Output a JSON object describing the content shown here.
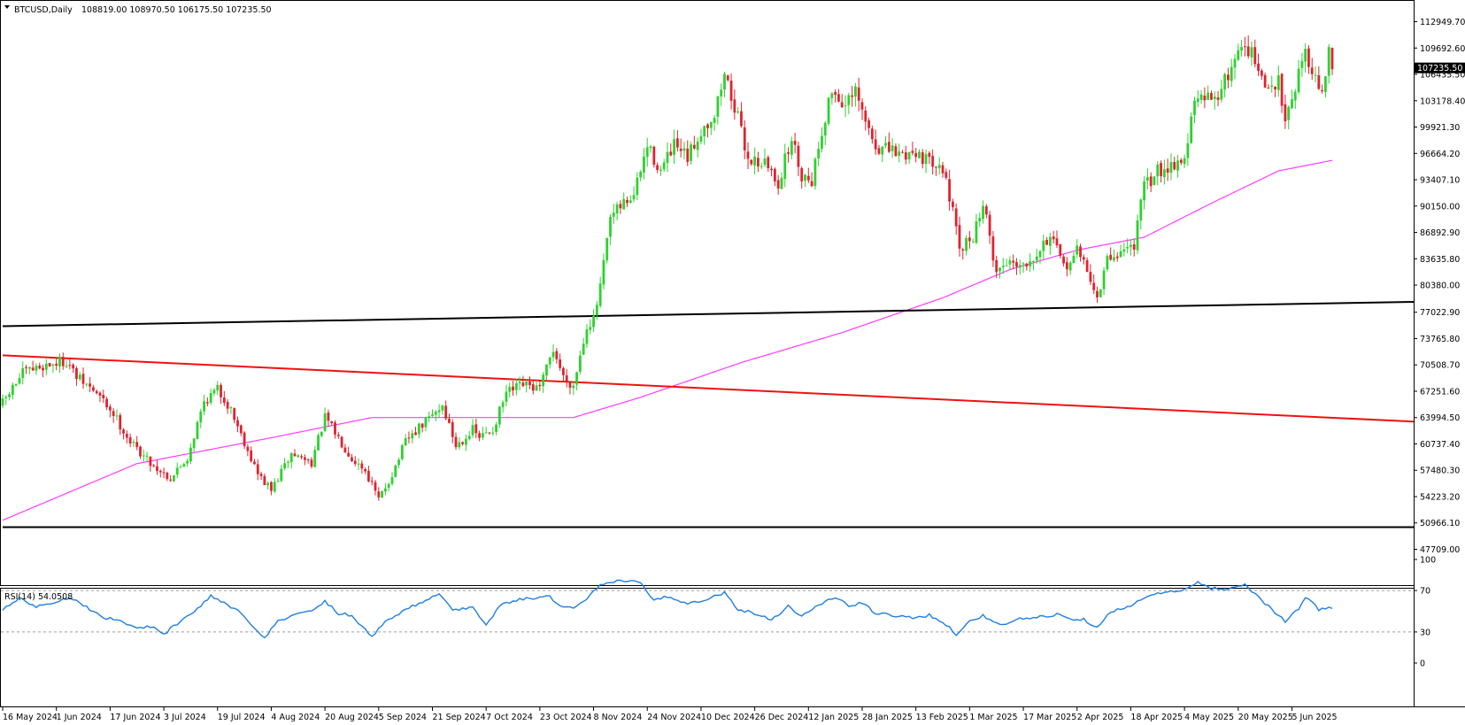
{
  "header": {
    "symbol": "BTCUSD,Daily",
    "ohlc": "108819.00 108970.50 106175.50 107235.50"
  },
  "colors": {
    "bull": "#2fd12f",
    "bear": "#e0232f",
    "ma": "#ff3cff",
    "support_line": "#000000",
    "trend_line": "#ee1111",
    "rsi": "#1e7fe0",
    "price_tag_bg": "#000000"
  },
  "chart_data": [
    {
      "type": "candlestick",
      "title": "BTCUSD,Daily",
      "current_price": 107235.5,
      "current_price_label": "107235.50",
      "ylim": [
        47709,
        114200
      ],
      "y_ticks": [
        "112949.70",
        "109692.60",
        "106435.50",
        "103178.40",
        "99921.30",
        "96664.20",
        "93407.10",
        "90150.00",
        "86892.90",
        "83635.80",
        "80380.00",
        "77022.90",
        "73765.80",
        "70508.70",
        "67251.60",
        "63994.50",
        "60737.40",
        "57480.30",
        "54223.20",
        "50966.10",
        "47709.00"
      ],
      "y_tick_values": [
        112949.7,
        109692.6,
        106435.5,
        103178.4,
        99921.3,
        96664.2,
        93407.1,
        90150.0,
        86892.9,
        83635.8,
        80380.0,
        77022.9,
        73765.8,
        70508.7,
        67251.6,
        63994.5,
        60737.4,
        57480.3,
        54223.2,
        50966.1,
        47709.0
      ],
      "x_ticks": [
        "16 May 2024",
        "1 Jun 2024",
        "17 Jun 2024",
        "3 Jul 2024",
        "19 Jul 2024",
        "4 Aug 2024",
        "20 Aug 2024",
        "5 Sep 2024",
        "21 Sep 2024",
        "7 Oct 2024",
        "23 Oct 2024",
        "8 Nov 2024",
        "24 Nov 2024",
        "10 Dec 2024",
        "26 Dec 2024",
        "12 Jan 2025",
        "28 Jan 2025",
        "13 Feb 2025",
        "1 Mar 2025",
        "17 Mar 2025",
        "2 Apr 2025",
        "18 Apr 2025",
        "4 May 2025",
        "20 May 2025",
        "5 Jun 2025"
      ],
      "close_anchors": [
        {
          "day": 0,
          "value": 65800
        },
        {
          "day": 6,
          "value": 69500
        },
        {
          "day": 13,
          "value": 70500
        },
        {
          "day": 19,
          "value": 71000
        },
        {
          "day": 22,
          "value": 69000
        },
        {
          "day": 28,
          "value": 67000
        },
        {
          "day": 33,
          "value": 64500
        },
        {
          "day": 38,
          "value": 61000
        },
        {
          "day": 45,
          "value": 58000
        },
        {
          "day": 50,
          "value": 56500
        },
        {
          "day": 55,
          "value": 59000
        },
        {
          "day": 60,
          "value": 66000
        },
        {
          "day": 64,
          "value": 67500
        },
        {
          "day": 68,
          "value": 65000
        },
        {
          "day": 72,
          "value": 61000
        },
        {
          "day": 76,
          "value": 57000
        },
        {
          "day": 80,
          "value": 55000
        },
        {
          "day": 86,
          "value": 59500
        },
        {
          "day": 92,
          "value": 58500
        },
        {
          "day": 96,
          "value": 64000
        },
        {
          "day": 100,
          "value": 61500
        },
        {
          "day": 104,
          "value": 59000
        },
        {
          "day": 108,
          "value": 57500
        },
        {
          "day": 112,
          "value": 53800
        },
        {
          "day": 116,
          "value": 57000
        },
        {
          "day": 120,
          "value": 61000
        },
        {
          "day": 126,
          "value": 63500
        },
        {
          "day": 131,
          "value": 65500
        },
        {
          "day": 135,
          "value": 60500
        },
        {
          "day": 140,
          "value": 62500
        },
        {
          "day": 142,
          "value": 61500
        },
        {
          "day": 146,
          "value": 62500
        },
        {
          "day": 150,
          "value": 67000
        },
        {
          "day": 155,
          "value": 68000
        },
        {
          "day": 160,
          "value": 67500
        },
        {
          "day": 164,
          "value": 72500
        },
        {
          "day": 167,
          "value": 69000
        },
        {
          "day": 170,
          "value": 68000
        },
        {
          "day": 174,
          "value": 75500
        },
        {
          "day": 176,
          "value": 76000
        },
        {
          "day": 178,
          "value": 80000
        },
        {
          "day": 181,
          "value": 88500
        },
        {
          "day": 185,
          "value": 90500
        },
        {
          "day": 188,
          "value": 91500
        },
        {
          "day": 192,
          "value": 97500
        },
        {
          "day": 196,
          "value": 94500
        },
        {
          "day": 200,
          "value": 97500
        },
        {
          "day": 204,
          "value": 96000
        },
        {
          "day": 208,
          "value": 99500
        },
        {
          "day": 212,
          "value": 101500
        },
        {
          "day": 215,
          "value": 106500
        },
        {
          "day": 218,
          "value": 102500
        },
        {
          "day": 222,
          "value": 96000
        },
        {
          "day": 227,
          "value": 95500
        },
        {
          "day": 231,
          "value": 93000
        },
        {
          "day": 235,
          "value": 98500
        },
        {
          "day": 238,
          "value": 94000
        },
        {
          "day": 241,
          "value": 93500
        },
        {
          "day": 244,
          "value": 99500
        },
        {
          "day": 247,
          "value": 104500
        },
        {
          "day": 251,
          "value": 102500
        },
        {
          "day": 254,
          "value": 104000
        },
        {
          "day": 257,
          "value": 100500
        },
        {
          "day": 260,
          "value": 97500
        },
        {
          "day": 264,
          "value": 97000
        },
        {
          "day": 268,
          "value": 96500
        },
        {
          "day": 272,
          "value": 97000
        },
        {
          "day": 276,
          "value": 95500
        },
        {
          "day": 279,
          "value": 96000
        },
        {
          "day": 282,
          "value": 91500
        },
        {
          "day": 285,
          "value": 84500
        },
        {
          "day": 289,
          "value": 86500
        },
        {
          "day": 292,
          "value": 90500
        },
        {
          "day": 296,
          "value": 82000
        },
        {
          "day": 300,
          "value": 83500
        },
        {
          "day": 304,
          "value": 83000
        },
        {
          "day": 308,
          "value": 84500
        },
        {
          "day": 312,
          "value": 86500
        },
        {
          "day": 316,
          "value": 82500
        },
        {
          "day": 320,
          "value": 84500
        },
        {
          "day": 323,
          "value": 82500
        },
        {
          "day": 326,
          "value": 78500
        },
        {
          "day": 329,
          "value": 83500
        },
        {
          "day": 333,
          "value": 84500
        },
        {
          "day": 337,
          "value": 85500
        },
        {
          "day": 340,
          "value": 92500
        },
        {
          "day": 344,
          "value": 94500
        },
        {
          "day": 349,
          "value": 95500
        },
        {
          "day": 352,
          "value": 96000
        },
        {
          "day": 355,
          "value": 103000
        },
        {
          "day": 359,
          "value": 103500
        },
        {
          "day": 363,
          "value": 104500
        },
        {
          "day": 367,
          "value": 108500
        },
        {
          "day": 370,
          "value": 110500
        },
        {
          "day": 373,
          "value": 108000
        },
        {
          "day": 376,
          "value": 104500
        },
        {
          "day": 380,
          "value": 105500
        },
        {
          "day": 382,
          "value": 101500
        },
        {
          "day": 385,
          "value": 105000
        },
        {
          "day": 388,
          "value": 109800
        },
        {
          "day": 391,
          "value": 105500
        },
        {
          "day": 393,
          "value": 104500
        },
        {
          "day": 395,
          "value": 108800
        },
        {
          "day": 396,
          "value": 107235.5
        }
      ],
      "ma_anchors": [
        {
          "day": 0,
          "value": 51300
        },
        {
          "day": 40,
          "value": 58300
        },
        {
          "day": 80,
          "value": 61500
        },
        {
          "day": 110,
          "value": 64000
        },
        {
          "day": 150,
          "value": 64000
        },
        {
          "day": 170,
          "value": 64000
        },
        {
          "day": 190,
          "value": 66500
        },
        {
          "day": 220,
          "value": 70800
        },
        {
          "day": 250,
          "value": 74500
        },
        {
          "day": 280,
          "value": 78800
        },
        {
          "day": 300,
          "value": 82300
        },
        {
          "day": 320,
          "value": 84700
        },
        {
          "day": 340,
          "value": 86300
        },
        {
          "day": 360,
          "value": 90500
        },
        {
          "day": 380,
          "value": 94500
        },
        {
          "day": 396,
          "value": 95800
        }
      ],
      "lines": [
        {
          "name": "support",
          "start": {
            "day": 0,
            "value": 75300
          },
          "end": {
            "day": 396,
            "value": 78300
          }
        },
        {
          "name": "trend",
          "start": {
            "day": 0,
            "value": 71700
          },
          "end": {
            "day": 396,
            "value": 63500
          }
        },
        {
          "name": "base",
          "start": {
            "day": 0,
            "value": 50450
          },
          "end": {
            "day": 396,
            "value": 50450
          }
        }
      ],
      "total_days": 397,
      "grid": false
    },
    {
      "type": "line",
      "title": "RSI(14) 54.0508",
      "ylim": [
        0,
        100
      ],
      "y_ticks": [
        "100",
        "70",
        "30",
        "0"
      ],
      "y_tick_values": [
        100,
        70,
        30,
        0
      ],
      "levels": [
        70,
        30
      ],
      "current_value": 54.0508,
      "rsi_anchors": [
        {
          "day": 0,
          "value": 52
        },
        {
          "day": 5,
          "value": 62
        },
        {
          "day": 10,
          "value": 55
        },
        {
          "day": 15,
          "value": 58
        },
        {
          "day": 20,
          "value": 64
        },
        {
          "day": 25,
          "value": 54
        },
        {
          "day": 30,
          "value": 44
        },
        {
          "day": 35,
          "value": 41
        },
        {
          "day": 40,
          "value": 33
        },
        {
          "day": 45,
          "value": 36
        },
        {
          "day": 48,
          "value": 28
        },
        {
          "day": 52,
          "value": 38
        },
        {
          "day": 58,
          "value": 52
        },
        {
          "day": 62,
          "value": 65
        },
        {
          "day": 66,
          "value": 58
        },
        {
          "day": 70,
          "value": 50
        },
        {
          "day": 74,
          "value": 38
        },
        {
          "day": 78,
          "value": 25
        },
        {
          "day": 82,
          "value": 40
        },
        {
          "day": 86,
          "value": 46
        },
        {
          "day": 92,
          "value": 50
        },
        {
          "day": 96,
          "value": 60
        },
        {
          "day": 100,
          "value": 48
        },
        {
          "day": 104,
          "value": 46
        },
        {
          "day": 110,
          "value": 26
        },
        {
          "day": 114,
          "value": 40
        },
        {
          "day": 118,
          "value": 48
        },
        {
          "day": 124,
          "value": 58
        },
        {
          "day": 130,
          "value": 67
        },
        {
          "day": 134,
          "value": 50
        },
        {
          "day": 140,
          "value": 55
        },
        {
          "day": 144,
          "value": 36
        },
        {
          "day": 148,
          "value": 55
        },
        {
          "day": 152,
          "value": 60
        },
        {
          "day": 158,
          "value": 63
        },
        {
          "day": 162,
          "value": 66
        },
        {
          "day": 166,
          "value": 56
        },
        {
          "day": 170,
          "value": 52
        },
        {
          "day": 174,
          "value": 62
        },
        {
          "day": 178,
          "value": 75
        },
        {
          "day": 182,
          "value": 78
        },
        {
          "day": 186,
          "value": 80
        },
        {
          "day": 190,
          "value": 77
        },
        {
          "day": 194,
          "value": 60
        },
        {
          "day": 198,
          "value": 64
        },
        {
          "day": 204,
          "value": 58
        },
        {
          "day": 210,
          "value": 62
        },
        {
          "day": 215,
          "value": 68
        },
        {
          "day": 219,
          "value": 52
        },
        {
          "day": 224,
          "value": 48
        },
        {
          "day": 229,
          "value": 42
        },
        {
          "day": 234,
          "value": 55
        },
        {
          "day": 238,
          "value": 45
        },
        {
          "day": 242,
          "value": 54
        },
        {
          "day": 248,
          "value": 64
        },
        {
          "day": 252,
          "value": 55
        },
        {
          "day": 256,
          "value": 58
        },
        {
          "day": 260,
          "value": 48
        },
        {
          "day": 265,
          "value": 46
        },
        {
          "day": 270,
          "value": 44
        },
        {
          "day": 276,
          "value": 46
        },
        {
          "day": 280,
          "value": 40
        },
        {
          "day": 284,
          "value": 28
        },
        {
          "day": 288,
          "value": 40
        },
        {
          "day": 292,
          "value": 46
        },
        {
          "day": 297,
          "value": 36
        },
        {
          "day": 302,
          "value": 42
        },
        {
          "day": 308,
          "value": 44
        },
        {
          "day": 314,
          "value": 47
        },
        {
          "day": 318,
          "value": 43
        },
        {
          "day": 322,
          "value": 42
        },
        {
          "day": 326,
          "value": 35
        },
        {
          "day": 330,
          "value": 50
        },
        {
          "day": 336,
          "value": 54
        },
        {
          "day": 340,
          "value": 64
        },
        {
          "day": 346,
          "value": 68
        },
        {
          "day": 352,
          "value": 70
        },
        {
          "day": 356,
          "value": 78
        },
        {
          "day": 360,
          "value": 72
        },
        {
          "day": 366,
          "value": 72
        },
        {
          "day": 370,
          "value": 76
        },
        {
          "day": 374,
          "value": 64
        },
        {
          "day": 378,
          "value": 52
        },
        {
          "day": 382,
          "value": 40
        },
        {
          "day": 386,
          "value": 52
        },
        {
          "day": 388,
          "value": 64
        },
        {
          "day": 392,
          "value": 52
        },
        {
          "day": 396,
          "value": 54
        }
      ]
    }
  ]
}
